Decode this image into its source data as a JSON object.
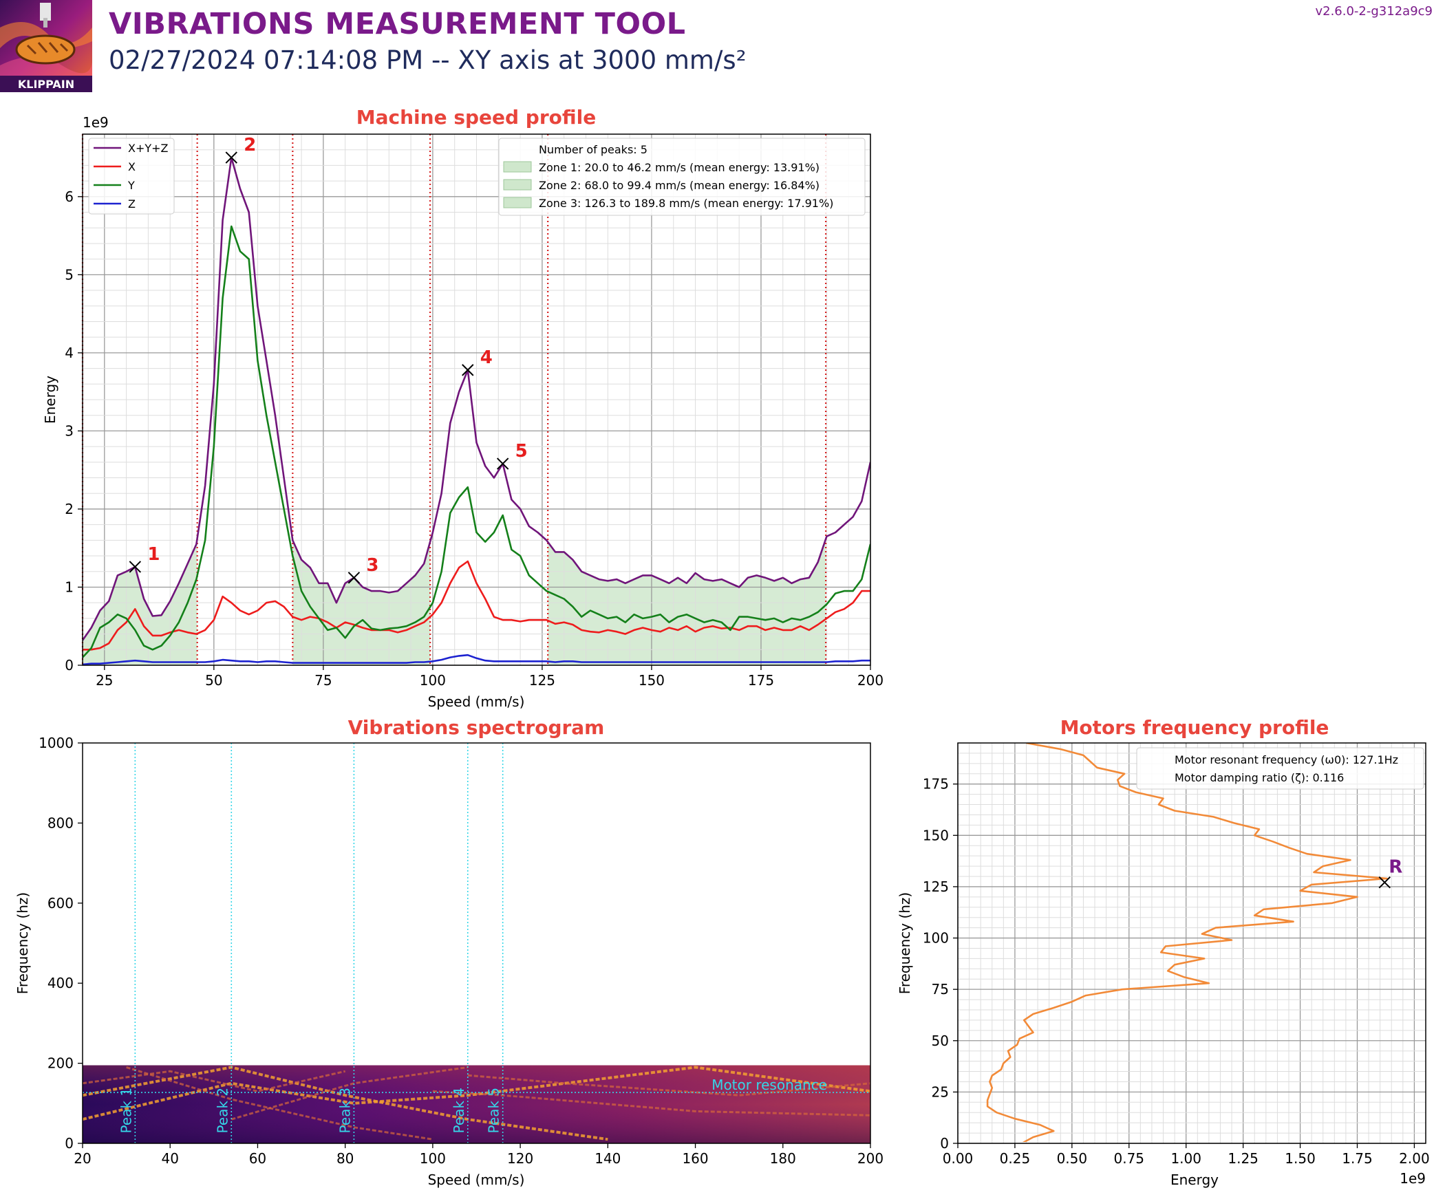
{
  "header": {
    "title": "VIBRATIONS MEASUREMENT TOOL",
    "subtitle": "02/27/2024 07:14:08 PM -- XY axis at 3000 mm/s²",
    "version": "v2.6.0-2-g312a9c9",
    "logo_text": "KLIPPAIN"
  },
  "colors": {
    "title": "#7a1a8a",
    "subtitle": "#1f2b5c",
    "panel_title": "#e8453c",
    "xyz": "#70157a",
    "x": "#ee1c1c",
    "y": "#14801a",
    "z": "#1c22d0",
    "zone_fill": "#cfe7cc",
    "zone_line": "#d62020",
    "peak_line": "#35d6e8",
    "motor_curve": "#f28a38"
  },
  "chart_data": [
    {
      "type": "line",
      "title": "Machine speed profile",
      "xlabel": "Speed (mm/s)",
      "ylabel": "Energy",
      "y_offset_label": "1e9",
      "xlim": [
        20,
        200
      ],
      "ylim": [
        0,
        6.8
      ],
      "xticks": [
        25,
        50,
        75,
        100,
        125,
        150,
        175,
        200
      ],
      "yticks": [
        0,
        1,
        2,
        3,
        4,
        5,
        6
      ],
      "grid": true,
      "legend_position": "top-left",
      "x": [
        20,
        22,
        24,
        26,
        28,
        30,
        32,
        34,
        36,
        38,
        40,
        42,
        44,
        46,
        48,
        50,
        52,
        54,
        56,
        58,
        60,
        62,
        64,
        66,
        68,
        70,
        72,
        74,
        76,
        78,
        80,
        82,
        84,
        86,
        88,
        90,
        92,
        94,
        96,
        98,
        100,
        102,
        104,
        106,
        108,
        110,
        112,
        114,
        116,
        118,
        120,
        122,
        124,
        126,
        128,
        130,
        132,
        134,
        136,
        138,
        140,
        142,
        144,
        146,
        148,
        150,
        152,
        154,
        156,
        158,
        160,
        162,
        164,
        166,
        168,
        170,
        172,
        174,
        176,
        178,
        180,
        182,
        184,
        186,
        188,
        190,
        192,
        194,
        196,
        198,
        200
      ],
      "series": [
        {
          "name": "X+Y+Z",
          "values": [
            0.32,
            0.48,
            0.7,
            0.82,
            1.15,
            1.2,
            1.26,
            0.85,
            0.63,
            0.64,
            0.82,
            1.05,
            1.3,
            1.55,
            2.3,
            3.6,
            5.7,
            6.5,
            6.1,
            5.8,
            4.6,
            3.9,
            3.2,
            2.4,
            1.6,
            1.35,
            1.25,
            1.05,
            1.05,
            0.8,
            1.05,
            1.12,
            1.0,
            0.95,
            0.95,
            0.93,
            0.95,
            1.05,
            1.15,
            1.3,
            1.7,
            2.2,
            3.1,
            3.5,
            3.78,
            2.85,
            2.55,
            2.4,
            2.58,
            2.12,
            2.0,
            1.78,
            1.7,
            1.6,
            1.45,
            1.45,
            1.35,
            1.2,
            1.15,
            1.1,
            1.08,
            1.1,
            1.05,
            1.1,
            1.15,
            1.15,
            1.1,
            1.05,
            1.12,
            1.05,
            1.18,
            1.1,
            1.08,
            1.1,
            1.05,
            1.0,
            1.12,
            1.15,
            1.12,
            1.08,
            1.12,
            1.05,
            1.1,
            1.12,
            1.32,
            1.65,
            1.7,
            1.8,
            1.9,
            2.1,
            2.6
          ]
        },
        {
          "name": "X",
          "values": [
            0.2,
            0.2,
            0.22,
            0.28,
            0.45,
            0.55,
            0.72,
            0.5,
            0.38,
            0.38,
            0.42,
            0.45,
            0.42,
            0.4,
            0.45,
            0.58,
            0.88,
            0.8,
            0.7,
            0.65,
            0.7,
            0.8,
            0.82,
            0.75,
            0.62,
            0.58,
            0.62,
            0.6,
            0.55,
            0.48,
            0.55,
            0.52,
            0.48,
            0.45,
            0.45,
            0.45,
            0.42,
            0.45,
            0.5,
            0.55,
            0.65,
            0.8,
            1.05,
            1.25,
            1.33,
            1.05,
            0.85,
            0.62,
            0.58,
            0.58,
            0.56,
            0.58,
            0.58,
            0.58,
            0.53,
            0.55,
            0.52,
            0.45,
            0.43,
            0.42,
            0.45,
            0.43,
            0.4,
            0.45,
            0.48,
            0.45,
            0.43,
            0.48,
            0.45,
            0.5,
            0.43,
            0.48,
            0.5,
            0.47,
            0.48,
            0.45,
            0.5,
            0.5,
            0.45,
            0.48,
            0.45,
            0.45,
            0.5,
            0.45,
            0.52,
            0.6,
            0.68,
            0.72,
            0.8,
            0.95,
            0.95
          ]
        },
        {
          "name": "Y",
          "values": [
            0.1,
            0.22,
            0.48,
            0.55,
            0.65,
            0.6,
            0.45,
            0.25,
            0.2,
            0.25,
            0.38,
            0.55,
            0.8,
            1.1,
            1.6,
            2.8,
            4.7,
            5.62,
            5.3,
            5.2,
            3.9,
            3.2,
            2.6,
            2.0,
            1.4,
            0.95,
            0.75,
            0.6,
            0.45,
            0.48,
            0.35,
            0.5,
            0.58,
            0.47,
            0.45,
            0.47,
            0.48,
            0.5,
            0.55,
            0.62,
            0.8,
            1.2,
            1.95,
            2.15,
            2.28,
            1.7,
            1.58,
            1.7,
            1.92,
            1.48,
            1.4,
            1.15,
            1.05,
            0.95,
            0.9,
            0.85,
            0.75,
            0.62,
            0.7,
            0.65,
            0.6,
            0.62,
            0.55,
            0.65,
            0.6,
            0.62,
            0.65,
            0.55,
            0.62,
            0.65,
            0.6,
            0.55,
            0.58,
            0.55,
            0.45,
            0.62,
            0.62,
            0.6,
            0.58,
            0.6,
            0.55,
            0.6,
            0.58,
            0.62,
            0.68,
            0.78,
            0.92,
            0.95,
            0.95,
            1.1,
            1.55
          ]
        },
        {
          "name": "Z",
          "values": [
            0.01,
            0.02,
            0.02,
            0.03,
            0.04,
            0.05,
            0.06,
            0.05,
            0.04,
            0.04,
            0.04,
            0.04,
            0.04,
            0.04,
            0.04,
            0.05,
            0.07,
            0.06,
            0.05,
            0.05,
            0.04,
            0.05,
            0.05,
            0.04,
            0.03,
            0.03,
            0.03,
            0.03,
            0.03,
            0.03,
            0.03,
            0.03,
            0.03,
            0.03,
            0.03,
            0.03,
            0.03,
            0.03,
            0.04,
            0.04,
            0.05,
            0.07,
            0.1,
            0.12,
            0.13,
            0.09,
            0.06,
            0.05,
            0.05,
            0.05,
            0.05,
            0.05,
            0.05,
            0.05,
            0.04,
            0.05,
            0.05,
            0.04,
            0.04,
            0.04,
            0.04,
            0.04,
            0.04,
            0.04,
            0.04,
            0.04,
            0.04,
            0.04,
            0.04,
            0.04,
            0.04,
            0.04,
            0.04,
            0.04,
            0.04,
            0.04,
            0.04,
            0.04,
            0.04,
            0.04,
            0.04,
            0.04,
            0.04,
            0.04,
            0.04,
            0.04,
            0.05,
            0.05,
            0.05,
            0.06,
            0.06
          ]
        }
      ],
      "zones": [
        {
          "start": 20.0,
          "end": 46.2,
          "label": "Zone 1: 20.0 to 46.2 mm/s (mean energy: 13.91%)"
        },
        {
          "start": 68.0,
          "end": 99.4,
          "label": "Zone 2: 68.0 to 99.4 mm/s (mean energy: 16.84%)"
        },
        {
          "start": 126.3,
          "end": 189.8,
          "label": "Zone 3: 126.3 to 189.8 mm/s (mean energy: 17.91%)"
        }
      ],
      "peaks_label": "Number of peaks: 5",
      "peaks": [
        {
          "label": "1",
          "x": 32,
          "y": 1.26
        },
        {
          "label": "2",
          "x": 54,
          "y": 6.5
        },
        {
          "label": "3",
          "x": 82,
          "y": 1.12
        },
        {
          "label": "4",
          "x": 108,
          "y": 3.78
        },
        {
          "label": "5",
          "x": 116,
          "y": 2.58
        }
      ]
    },
    {
      "type": "heatmap",
      "title": "Vibrations spectrogram",
      "xlabel": "Speed (mm/s)",
      "ylabel": "Frequency (hz)",
      "xlim": [
        20,
        200
      ],
      "ylim": [
        0,
        1000
      ],
      "xticks": [
        20,
        40,
        60,
        80,
        100,
        120,
        140,
        160,
        180,
        200
      ],
      "yticks": [
        0,
        200,
        400,
        600,
        800,
        1000
      ],
      "data_max_frequency": 195,
      "motor_resonance_frequency": 127.1,
      "motor_resonance_label": "Motor resonance",
      "peak_lines": [
        {
          "label": "Peak 1",
          "x": 32
        },
        {
          "label": "Peak 2",
          "x": 54
        },
        {
          "label": "Peak 3",
          "x": 82
        },
        {
          "label": "Peak 4",
          "x": 108
        },
        {
          "label": "Peak 5",
          "x": 116
        }
      ]
    },
    {
      "type": "line",
      "title": "Motors frequency profile",
      "xlabel": "Energy",
      "ylabel": "Frequency (hz)",
      "x_offset_label": "1e9",
      "xlim": [
        0,
        2.05
      ],
      "ylim": [
        0,
        195
      ],
      "xticks": [
        0.0,
        0.25,
        0.5,
        0.75,
        1.0,
        1.25,
        1.5,
        1.75,
        2.0
      ],
      "xtick_labels": [
        "0.00",
        "0.25",
        "0.50",
        "0.75",
        "1.00",
        "1.25",
        "1.50",
        "1.75",
        "2.00"
      ],
      "yticks": [
        0,
        25,
        50,
        75,
        100,
        125,
        150,
        175
      ],
      "grid": true,
      "legend_position": "top-right",
      "freq": [
        0,
        3,
        6,
        9,
        12,
        15,
        18,
        21,
        24,
        27,
        30,
        33,
        36,
        39,
        42,
        45,
        48,
        51,
        54,
        57,
        60,
        63,
        66,
        69,
        72,
        75,
        78,
        81,
        84,
        87,
        90,
        93,
        96,
        99,
        102,
        105,
        108,
        111,
        114,
        117,
        120,
        123,
        126,
        129,
        132,
        135,
        138,
        141,
        144,
        147,
        150,
        153,
        156,
        159,
        162,
        165,
        168,
        171,
        174,
        177,
        180,
        183,
        186,
        189,
        192,
        195
      ],
      "energy": [
        0.28,
        0.33,
        0.42,
        0.36,
        0.25,
        0.17,
        0.13,
        0.13,
        0.14,
        0.15,
        0.14,
        0.15,
        0.19,
        0.2,
        0.23,
        0.22,
        0.26,
        0.27,
        0.33,
        0.31,
        0.29,
        0.33,
        0.42,
        0.5,
        0.56,
        0.72,
        1.1,
        0.99,
        0.92,
        0.95,
        1.08,
        0.89,
        0.91,
        1.2,
        1.07,
        1.13,
        1.47,
        1.3,
        1.34,
        1.64,
        1.75,
        1.5,
        1.55,
        1.88,
        1.56,
        1.6,
        1.72,
        1.53,
        1.45,
        1.38,
        1.3,
        1.32,
        1.21,
        1.12,
        0.95,
        0.88,
        0.9,
        0.78,
        0.71,
        0.7,
        0.73,
        0.61,
        0.58,
        0.55,
        0.45,
        0.3
      ],
      "resonance": {
        "label": "R",
        "frequency": 127.1,
        "energy": 1.87
      },
      "legend_entries": [
        "Motor resonant frequency (ω0): 127.1Hz",
        "Motor damping ratio (ζ): 0.116"
      ]
    }
  ]
}
